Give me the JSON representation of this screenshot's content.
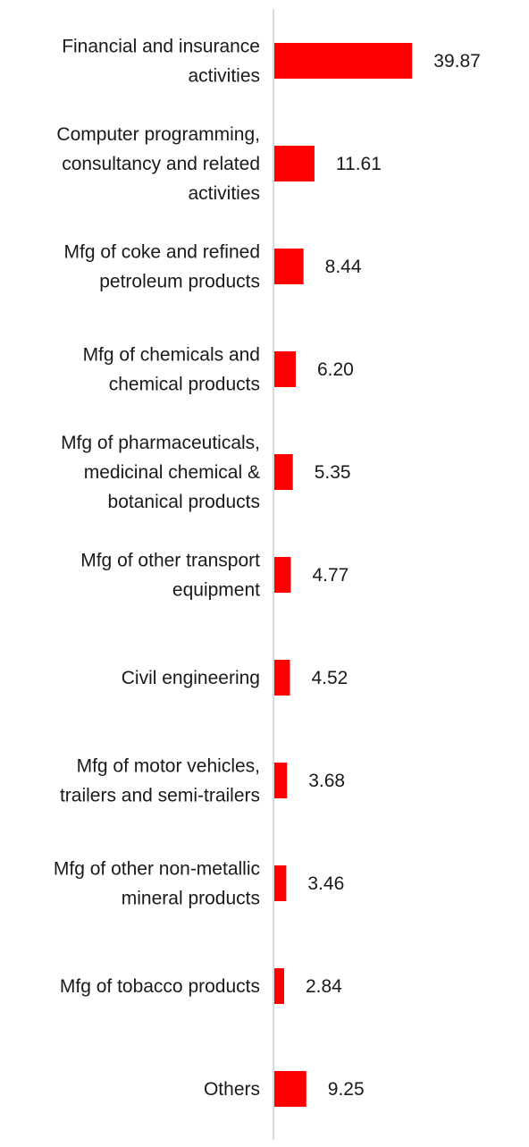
{
  "chart_data": {
    "type": "bar",
    "orientation": "horizontal",
    "categories": [
      [
        "Financial and insurance",
        "activities"
      ],
      [
        "Computer programming,",
        "consultancy and related",
        "activities"
      ],
      [
        "Mfg of coke and refined",
        "petroleum products"
      ],
      [
        "Mfg of chemicals and",
        "chemical products"
      ],
      [
        "Mfg of pharmaceuticals,",
        "medicinal chemical &",
        "botanical products"
      ],
      [
        "Mfg of other transport",
        "equipment"
      ],
      [
        "Civil engineering"
      ],
      [
        "Mfg of motor vehicles,",
        "trailers and semi-trailers"
      ],
      [
        "Mfg of other non-metallic",
        "mineral products"
      ],
      [
        "Mfg of tobacco products"
      ],
      [
        "Others"
      ]
    ],
    "values": [
      39.87,
      11.61,
      8.44,
      6.2,
      5.35,
      4.77,
      4.52,
      3.68,
      3.46,
      2.84,
      9.25
    ],
    "value_labels": [
      "39.87",
      "11.61",
      "8.44",
      "6.20",
      "5.35",
      "4.77",
      "4.52",
      "3.68",
      "3.46",
      "2.84",
      "9.25"
    ],
    "xlim": [
      0,
      40
    ],
    "colors": {
      "bar": "#ff0000",
      "axis": "#d9d9d9",
      "text": "#1a1a1a"
    },
    "grid": false,
    "legend": "none"
  }
}
